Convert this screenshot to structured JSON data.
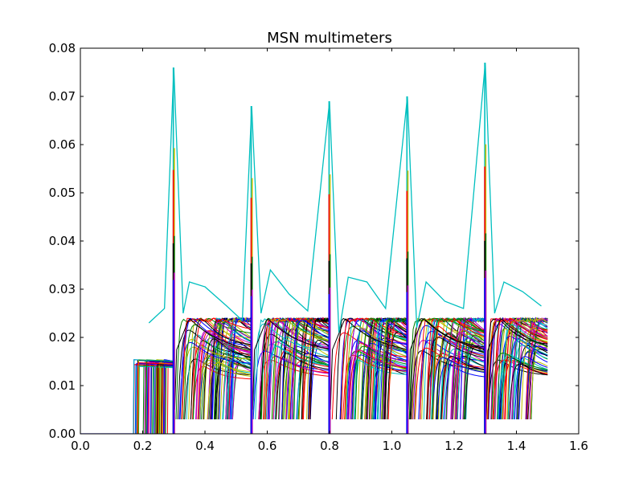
{
  "chart_data": {
    "type": "line",
    "title": "MSN multimeters",
    "xlabel": "",
    "ylabel": "",
    "xlim": [
      0.0,
      1.6
    ],
    "ylim": [
      0.0,
      0.08
    ],
    "x_ticks": [
      "0.0",
      "0.2",
      "0.4",
      "0.6",
      "0.8",
      "1.0",
      "1.2",
      "1.4",
      "1.6"
    ],
    "y_ticks": [
      "0.00",
      "0.01",
      "0.02",
      "0.03",
      "0.04",
      "0.05",
      "0.06",
      "0.07",
      "0.08"
    ],
    "grid": false,
    "legend": "none",
    "color_cycle": [
      "#0000ff",
      "#008000",
      "#ff0000",
      "#00bfbf",
      "#bf00bf",
      "#bfbf00",
      "#000000"
    ],
    "stimulus_times": [
      0.3,
      0.55,
      0.8,
      1.05,
      1.3
    ],
    "peak_values": [
      0.076,
      0.068,
      0.069,
      0.07,
      0.077
    ],
    "onset_window": [
      0.17,
      0.3
    ],
    "onset_plateau": 0.014,
    "envelope_peak": 0.024,
    "envelope_trough": 0.016,
    "highlight_series": {
      "color": "#00bfbf",
      "x": [
        0.22,
        0.27,
        0.3,
        0.33,
        0.35,
        0.4,
        0.47,
        0.52,
        0.55,
        0.58,
        0.61,
        0.67,
        0.73,
        0.8,
        0.83,
        0.86,
        0.92,
        0.98,
        1.05,
        1.08,
        1.11,
        1.17,
        1.23,
        1.3,
        1.33,
        1.36,
        1.42,
        1.48
      ],
      "y": [
        0.023,
        0.026,
        0.076,
        0.025,
        0.0315,
        0.0305,
        0.0265,
        0.0235,
        0.068,
        0.025,
        0.034,
        0.029,
        0.0255,
        0.069,
        0.021,
        0.0325,
        0.0315,
        0.026,
        0.07,
        0.022,
        0.0315,
        0.0275,
        0.026,
        0.077,
        0.025,
        0.0315,
        0.0295,
        0.0265
      ]
    }
  }
}
